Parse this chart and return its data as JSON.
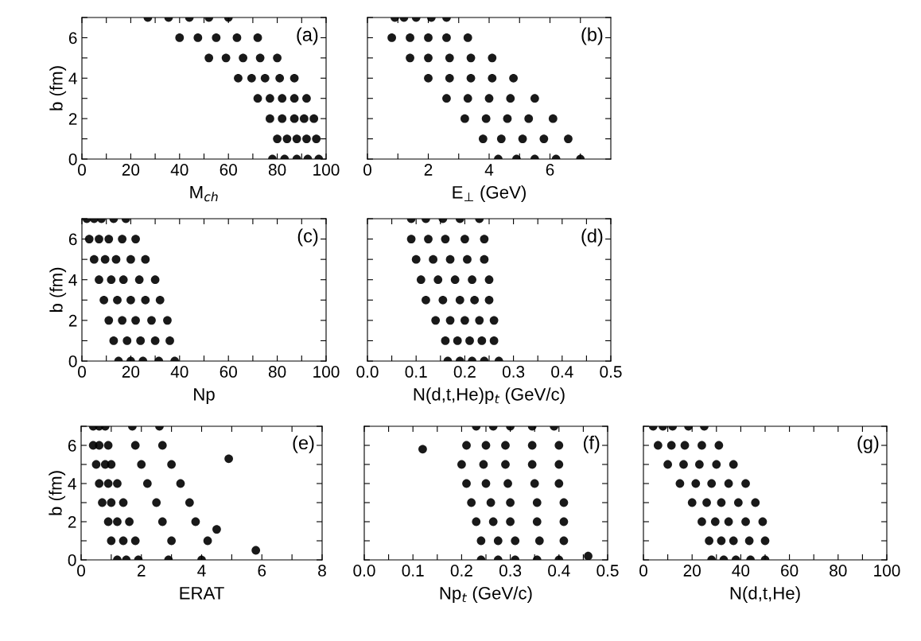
{
  "chart_data": [
    {
      "type": "scatter",
      "xlabel": "M$_{ch}$",
      "ylabel": "b (fm)",
      "annotations": [
        "(a)"
      ],
      "marker": "circle",
      "xlim": [
        0,
        100
      ],
      "xticks": [
        0,
        {
          "value": 10,
          "label": null
        },
        20,
        {
          "value": 30,
          "label": null
        },
        40,
        {
          "value": 50,
          "label": null
        },
        60,
        {
          "value": 70,
          "label": null
        },
        80,
        {
          "value": 90,
          "label": null
        },
        100
      ],
      "ylim": [
        0,
        7
      ],
      "yticks": [
        0,
        {
          "value": 1,
          "label": null
        },
        2,
        {
          "value": 3,
          "label": null
        },
        4,
        {
          "value": 5,
          "label": null
        },
        6,
        {
          "value": 7,
          "label": null
        }
      ],
      "series": [
        {
          "color": "#000000",
          "x": [
            78,
            83,
            88,
            92.5,
            97,
            80,
            84,
            88,
            92,
            96,
            77,
            82,
            87,
            91,
            95,
            72,
            77,
            82,
            87,
            92,
            64,
            69.5,
            75,
            81,
            87,
            52,
            59,
            66,
            73,
            80,
            40,
            47.5,
            55,
            63.5,
            72,
            27,
            35.5,
            44,
            52,
            60
          ],
          "values": [
            0,
            0,
            0,
            0,
            0,
            1,
            1,
            1,
            1,
            1,
            2,
            2,
            2,
            2,
            2,
            3,
            3,
            3,
            3,
            3,
            4,
            4,
            4,
            4,
            4,
            5,
            5,
            5,
            5,
            5,
            6,
            6,
            6,
            6,
            6,
            7,
            7,
            7,
            7,
            7
          ]
        }
      ]
    },
    {
      "type": "scatter",
      "xlabel": "E$_{⊥}$ (GeV)",
      "annotations": [
        "(b)"
      ],
      "marker": "circle",
      "tick_labels": "x",
      "xlim": [
        0,
        8
      ],
      "xticks": [
        0,
        {
          "value": 1,
          "label": null
        },
        2,
        {
          "value": 3,
          "label": null
        },
        4,
        {
          "value": 5,
          "label": null
        },
        6,
        {
          "value": 7,
          "label": null
        }
      ],
      "ylim": [
        0,
        7
      ],
      "yticks": [
        0,
        {
          "value": 1,
          "label": null
        },
        2,
        {
          "value": 3,
          "label": null
        },
        4,
        {
          "value": 5,
          "label": null
        },
        6,
        {
          "value": 7,
          "label": null
        }
      ],
      "series": [
        {
          "color": "#000000",
          "x": [
            4.3,
            4.9,
            5.5,
            6.2,
            7.0,
            3.8,
            4.4,
            5.1,
            5.8,
            6.6,
            3.2,
            3.9,
            4.6,
            5.3,
            6.1,
            2.6,
            3.3,
            4.0,
            4.7,
            5.5,
            2.0,
            2.7,
            3.4,
            4.1,
            4.8,
            1.4,
            2.0,
            2.7,
            3.4,
            4.1,
            0.8,
            1.4,
            2.0,
            2.6,
            3.3,
            0.9,
            1.2,
            1.6,
            2.1,
            2.6
          ],
          "values": [
            0,
            0,
            0,
            0,
            0,
            1,
            1,
            1,
            1,
            1,
            2,
            2,
            2,
            2,
            2,
            3,
            3,
            3,
            3,
            3,
            4,
            4,
            4,
            4,
            4,
            5,
            5,
            5,
            5,
            5,
            6,
            6,
            6,
            6,
            6,
            7,
            7,
            7,
            7,
            7
          ]
        }
      ]
    },
    {
      "type": "scatter",
      "xlabel": "Np",
      "ylabel": "b (fm)",
      "annotations": [
        "(c)"
      ],
      "marker": "circle",
      "xlim": [
        0,
        100
      ],
      "xticks": [
        0,
        {
          "value": 10,
          "label": null
        },
        20,
        {
          "value": 30,
          "label": null
        },
        40,
        {
          "value": 50,
          "label": null
        },
        60,
        {
          "value": 70,
          "label": null
        },
        80,
        {
          "value": 90,
          "label": null
        },
        100
      ],
      "ylim": [
        0,
        7
      ],
      "yticks": [
        0,
        {
          "value": 1,
          "label": null
        },
        2,
        {
          "value": 3,
          "label": null
        },
        4,
        {
          "value": 5,
          "label": null
        },
        6,
        {
          "value": 7,
          "label": null
        }
      ],
      "series": [
        {
          "color": "#000000",
          "x": [
            15,
            20,
            25,
            31.5,
            38,
            13,
            18.5,
            24,
            30,
            36,
            11,
            16.5,
            22,
            28.5,
            35,
            9,
            14.5,
            20,
            26,
            32,
            7,
            12,
            17,
            23.5,
            30,
            5,
            9.5,
            14,
            20,
            26,
            3,
            7,
            11,
            16.5,
            22,
            2,
            5,
            8,
            13,
            18
          ],
          "values": [
            0,
            0,
            0,
            0,
            0,
            1,
            1,
            1,
            1,
            1,
            2,
            2,
            2,
            2,
            2,
            3,
            3,
            3,
            3,
            3,
            4,
            4,
            4,
            4,
            4,
            5,
            5,
            5,
            5,
            5,
            6,
            6,
            6,
            6,
            6,
            7,
            7,
            7,
            7,
            7
          ]
        }
      ]
    },
    {
      "type": "scatter",
      "xlabel": "N(d,t,He)p$_{t}$ (GeV/c)",
      "annotations": [
        "(d)"
      ],
      "marker": "circle",
      "tick_labels": "x",
      "xlim": [
        0,
        0.5
      ],
      "xticks": [
        {
          "value": 0,
          "label": "0.0"
        },
        {
          "value": 0.05,
          "label": null
        },
        0.1,
        {
          "value": 0.15,
          "label": null
        },
        0.2,
        {
          "value": 0.25,
          "label": null
        },
        0.3,
        {
          "value": 0.35,
          "label": null
        },
        0.4,
        {
          "value": 0.45,
          "label": null
        },
        0.5
      ],
      "ylim": [
        0,
        7
      ],
      "yticks": [
        0,
        {
          "value": 1,
          "label": null
        },
        2,
        {
          "value": 3,
          "label": null
        },
        4,
        {
          "value": 5,
          "label": null
        },
        6,
        {
          "value": 7,
          "label": null
        }
      ],
      "series": [
        {
          "color": "#000000",
          "x": [
            0.165,
            0.19,
            0.215,
            0.24,
            0.27,
            0.16,
            0.185,
            0.21,
            0.235,
            0.26,
            0.14,
            0.17,
            0.2,
            0.23,
            0.26,
            0.12,
            0.155,
            0.19,
            0.22,
            0.25,
            0.11,
            0.145,
            0.18,
            0.215,
            0.25,
            0.1,
            0.135,
            0.17,
            0.205,
            0.24,
            0.09,
            0.125,
            0.16,
            0.2,
            0.24,
            0.09,
            0.12,
            0.155,
            0.19,
            0.23
          ],
          "values": [
            0,
            0,
            0,
            0,
            0,
            1,
            1,
            1,
            1,
            1,
            2,
            2,
            2,
            2,
            2,
            3,
            3,
            3,
            3,
            3,
            4,
            4,
            4,
            4,
            4,
            5,
            5,
            5,
            5,
            5,
            6,
            6,
            6,
            6,
            6,
            7,
            7,
            7,
            7,
            7
          ]
        }
      ]
    },
    {
      "type": "scatter",
      "xlabel": "ERAT",
      "ylabel": "b (fm)",
      "annotations": [
        "(e)"
      ],
      "marker": "circle",
      "xlim": [
        0,
        8
      ],
      "xticks": [
        0,
        {
          "value": 1,
          "label": null
        },
        2,
        {
          "value": 3,
          "label": null
        },
        4,
        {
          "value": 5,
          "label": null
        },
        6,
        {
          "value": 7,
          "label": null
        },
        8
      ],
      "ylim": [
        0,
        7
      ],
      "yticks": [
        0,
        {
          "value": 1,
          "label": null
        },
        2,
        {
          "value": 3,
          "label": null
        },
        4,
        {
          "value": 5,
          "label": null
        },
        6,
        {
          "value": 7,
          "label": null
        }
      ],
      "series": [
        {
          "color": "#000000",
          "x": [
            1.2,
            1.5,
            1.9,
            2.9,
            4.0,
            1.0,
            1.4,
            1.8,
            3.0,
            4.2,
            0.9,
            1.2,
            1.6,
            2.7,
            3.8,
            0.7,
            1.0,
            1.4,
            2.5,
            3.6,
            0.6,
            0.9,
            1.2,
            2.2,
            3.3,
            0.5,
            0.8,
            1.0,
            2.0,
            3.0,
            0.4,
            0.6,
            0.9,
            1.8,
            2.7,
            0.4,
            0.6,
            0.8,
            1.7,
            2.6,
            4.9,
            5.8,
            4.5
          ],
          "values": [
            0,
            0,
            0,
            0,
            0,
            1,
            1,
            1,
            1,
            1,
            2,
            2,
            2,
            2,
            2,
            3,
            3,
            3,
            3,
            3,
            4,
            4,
            4,
            4,
            4,
            5,
            5,
            5,
            5,
            5,
            6,
            6,
            6,
            6,
            6,
            7,
            7,
            7,
            7,
            7,
            5.3,
            0.5,
            1.6
          ]
        }
      ]
    },
    {
      "type": "scatter",
      "xlabel": "Np$_{t}$ (GeV/c)",
      "annotations": [
        "(f)"
      ],
      "marker": "circle",
      "tick_labels": "x",
      "xlim": [
        0,
        0.5
      ],
      "xticks": [
        {
          "value": 0,
          "label": "0.0"
        },
        {
          "value": 0.05,
          "label": null
        },
        0.1,
        {
          "value": 0.15,
          "label": null
        },
        0.2,
        {
          "value": 0.25,
          "label": null
        },
        0.3,
        {
          "value": 0.35,
          "label": null
        },
        0.4,
        {
          "value": 0.45,
          "label": null
        },
        0.5
      ],
      "ylim": [
        0,
        7
      ],
      "yticks": [
        0,
        {
          "value": 1,
          "label": null
        },
        2,
        {
          "value": 3,
          "label": null
        },
        4,
        {
          "value": 5,
          "label": null
        },
        6,
        {
          "value": 7,
          "label": null
        }
      ],
      "series": [
        {
          "color": "#000000",
          "x": [
            0.24,
            0.275,
            0.31,
            0.355,
            0.4,
            0.24,
            0.275,
            0.31,
            0.36,
            0.41,
            0.23,
            0.265,
            0.3,
            0.355,
            0.41,
            0.22,
            0.26,
            0.3,
            0.355,
            0.41,
            0.21,
            0.25,
            0.295,
            0.35,
            0.4,
            0.2,
            0.245,
            0.29,
            0.345,
            0.4,
            0.21,
            0.25,
            0.29,
            0.345,
            0.4,
            0.23,
            0.265,
            0.3,
            0.345,
            0.39,
            0.46,
            0.12
          ],
          "values": [
            0,
            0,
            0,
            0,
            0,
            1,
            1,
            1,
            1,
            1,
            2,
            2,
            2,
            2,
            2,
            3,
            3,
            3,
            3,
            3,
            4,
            4,
            4,
            4,
            4,
            5,
            5,
            5,
            5,
            5,
            6,
            6,
            6,
            6,
            6,
            7,
            7,
            7,
            7,
            7,
            0.2,
            5.8
          ]
        }
      ]
    },
    {
      "type": "scatter",
      "xlabel": "N(d,t,He)",
      "annotations": [
        "(g)"
      ],
      "marker": "circle",
      "tick_labels": "x",
      "xlim": [
        0,
        100
      ],
      "xticks": [
        0,
        {
          "value": 10,
          "label": null
        },
        20,
        {
          "value": 30,
          "label": null
        },
        40,
        {
          "value": 50,
          "label": null
        },
        60,
        {
          "value": 70,
          "label": null
        },
        80,
        {
          "value": 90,
          "label": null
        },
        100
      ],
      "ylim": [
        0,
        7
      ],
      "yticks": [
        0,
        {
          "value": 1,
          "label": null
        },
        2,
        {
          "value": 3,
          "label": null
        },
        4,
        {
          "value": 5,
          "label": null
        },
        6,
        {
          "value": 7,
          "label": null
        }
      ],
      "series": [
        {
          "color": "#000000",
          "x": [
            28,
            33,
            38,
            44,
            50,
            27,
            32,
            37,
            43.5,
            50,
            24,
            29.5,
            35,
            42,
            49,
            20,
            26,
            32,
            39,
            46,
            15,
            21.5,
            28,
            35,
            42,
            10,
            16.5,
            23,
            30,
            37,
            6,
            11.5,
            17,
            24,
            31,
            4,
            8,
            12,
            18.5,
            25
          ],
          "values": [
            0,
            0,
            0,
            0,
            0,
            1,
            1,
            1,
            1,
            1,
            2,
            2,
            2,
            2,
            2,
            3,
            3,
            3,
            3,
            3,
            4,
            4,
            4,
            4,
            4,
            5,
            5,
            5,
            5,
            5,
            6,
            6,
            6,
            6,
            6,
            7,
            7,
            7,
            7,
            7
          ]
        }
      ]
    }
  ]
}
